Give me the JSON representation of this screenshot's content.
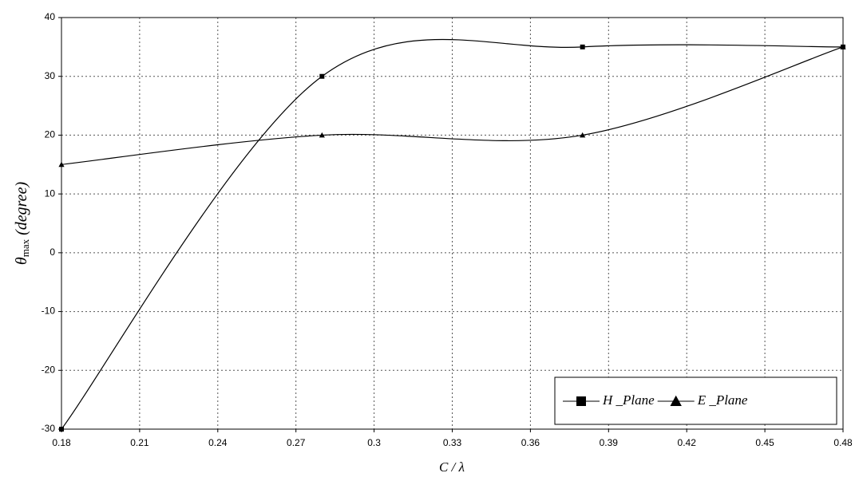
{
  "chart_data": {
    "type": "line",
    "x_label": "C / λ",
    "y_label": {
      "symbol": "θ",
      "subscript": "max",
      "unit": "(degree)"
    },
    "x": [
      0.18,
      0.28,
      0.38,
      0.48
    ],
    "series": [
      {
        "name": "H _Plane",
        "color": "#000000",
        "marker": "square",
        "values": [
          -30,
          30,
          35,
          35
        ]
      },
      {
        "name": "E _Plane",
        "color": "#000000",
        "marker": "triangle",
        "values": [
          15,
          20,
          20,
          35
        ]
      }
    ],
    "xlim": [
      0.18,
      0.48
    ],
    "xticks": [
      0.18,
      0.21,
      0.24,
      0.27,
      0.3,
      0.33,
      0.36,
      0.39,
      0.42,
      0.45,
      0.48
    ],
    "ylim": [
      -30,
      40
    ],
    "yticks": [
      -30,
      -20,
      -10,
      0,
      10,
      20,
      30,
      40
    ],
    "grid": true,
    "smooth": true,
    "legend": "bottom-right"
  }
}
